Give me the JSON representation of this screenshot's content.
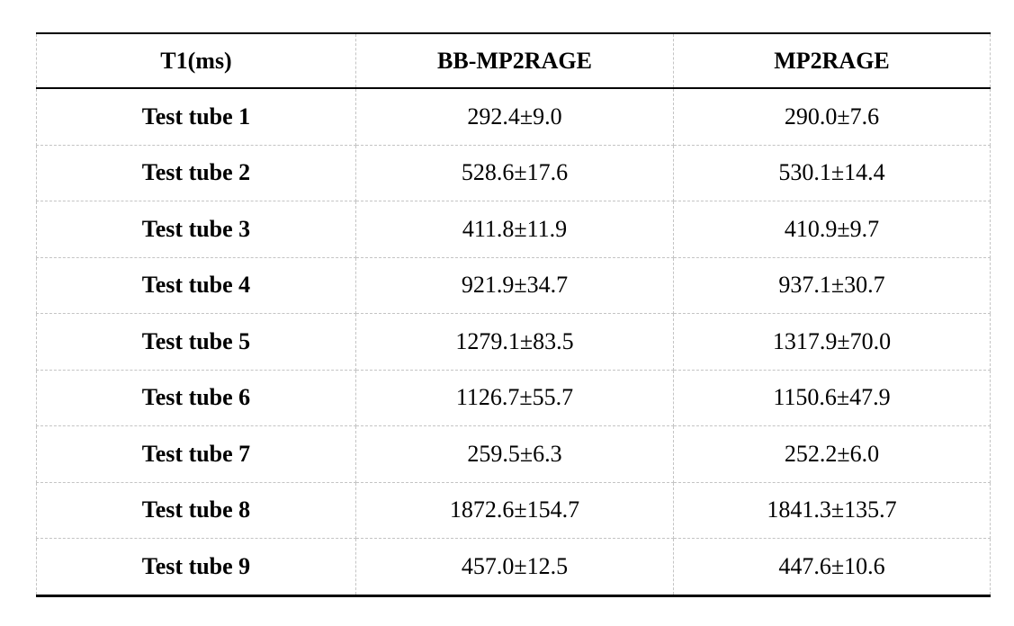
{
  "table": {
    "columns": [
      "T1(ms)",
      "BB-MP2RAGE",
      "MP2RAGE"
    ],
    "rows": [
      [
        "Test tube 1",
        "292.4±9.0",
        "290.0±7.6"
      ],
      [
        "Test tube 2",
        "528.6±17.6",
        "530.1±14.4"
      ],
      [
        "Test tube 3",
        "411.8±11.9",
        "410.9±9.7"
      ],
      [
        "Test tube 4",
        "921.9±34.7",
        "937.1±30.7"
      ],
      [
        "Test tube 5",
        "1279.1±83.5",
        "1317.9±70.0"
      ],
      [
        "Test tube 6",
        "1126.7±55.7",
        "1150.6±47.9"
      ],
      [
        "Test tube 7",
        "259.5±6.3",
        "252.2±6.0"
      ],
      [
        "Test tube 8",
        "1872.6±154.7",
        "1841.3±135.7"
      ],
      [
        "Test tube 9",
        "457.0±12.5",
        "447.6±10.6"
      ]
    ]
  },
  "chart_data": {
    "type": "table",
    "title": "T1(ms)",
    "columns": [
      "T1(ms)",
      "BB-MP2RAGE",
      "MP2RAGE"
    ],
    "categories": [
      "Test tube 1",
      "Test tube 2",
      "Test tube 3",
      "Test tube 4",
      "Test tube 5",
      "Test tube 6",
      "Test tube 7",
      "Test tube 8",
      "Test tube 9"
    ],
    "series": [
      {
        "name": "BB-MP2RAGE",
        "values": [
          292.4,
          528.6,
          411.8,
          921.9,
          1279.1,
          1126.7,
          259.5,
          1872.6,
          457.0
        ],
        "errors": [
          9.0,
          17.6,
          11.9,
          34.7,
          83.5,
          55.7,
          6.3,
          154.7,
          12.5
        ]
      },
      {
        "name": "MP2RAGE",
        "values": [
          290.0,
          530.1,
          410.9,
          937.1,
          1317.9,
          1150.6,
          252.2,
          1841.3,
          447.6
        ],
        "errors": [
          7.6,
          14.4,
          9.7,
          30.7,
          70.0,
          47.9,
          6.0,
          135.7,
          10.6
        ]
      }
    ]
  },
  "colors": {
    "solid_rule": "#000000",
    "dashed_rule": "#c4c4c4",
    "text": "#000000",
    "background": "#ffffff"
  }
}
